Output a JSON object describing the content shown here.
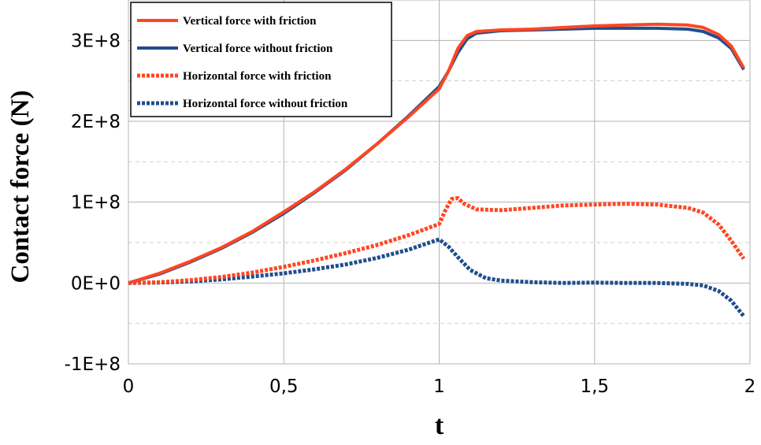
{
  "chart_data": {
    "type": "line",
    "title": "",
    "xlabel": "t",
    "ylabel": "Contact force (N)",
    "xlim": [
      0,
      2
    ],
    "ylim": [
      -100000000,
      350000000
    ],
    "x_ticks": [
      {
        "value": 0,
        "label": "0"
      },
      {
        "value": 0.5,
        "label": "0,5"
      },
      {
        "value": 1,
        "label": "1"
      },
      {
        "value": 1.5,
        "label": "1,5"
      },
      {
        "value": 2,
        "label": "2"
      }
    ],
    "y_ticks": [
      {
        "value": -100000000,
        "label": "-1E+8"
      },
      {
        "value": 0,
        "label": "0E+0"
      },
      {
        "value": 100000000,
        "label": "1E+8"
      },
      {
        "value": 200000000,
        "label": "2E+8"
      },
      {
        "value": 300000000,
        "label": "3E+8"
      }
    ],
    "grid": true,
    "legend_position": "top-left",
    "series": [
      {
        "name": "Vertical force with friction",
        "color": "#ff4621",
        "dash": "solid",
        "points": [
          [
            0,
            0
          ],
          [
            0.1,
            12000000
          ],
          [
            0.2,
            27000000
          ],
          [
            0.3,
            44000000
          ],
          [
            0.4,
            64000000
          ],
          [
            0.5,
            88000000
          ],
          [
            0.6,
            113000000
          ],
          [
            0.7,
            141000000
          ],
          [
            0.8,
            172000000
          ],
          [
            0.9,
            205000000
          ],
          [
            1.0,
            240000000
          ],
          [
            1.03,
            262000000
          ],
          [
            1.06,
            290000000
          ],
          [
            1.09,
            306000000
          ],
          [
            1.12,
            311000000
          ],
          [
            1.2,
            313000000
          ],
          [
            1.3,
            314000000
          ],
          [
            1.4,
            316000000
          ],
          [
            1.5,
            318000000
          ],
          [
            1.6,
            319000000
          ],
          [
            1.7,
            320000000
          ],
          [
            1.8,
            319000000
          ],
          [
            1.85,
            316000000
          ],
          [
            1.9,
            307000000
          ],
          [
            1.94,
            293000000
          ],
          [
            1.98,
            266000000
          ]
        ]
      },
      {
        "name": "Vertical force without friction",
        "color": "#1f4e8c",
        "dash": "solid",
        "points": [
          [
            0,
            0
          ],
          [
            0.1,
            11000000
          ],
          [
            0.2,
            26000000
          ],
          [
            0.3,
            43000000
          ],
          [
            0.4,
            63000000
          ],
          [
            0.5,
            86000000
          ],
          [
            0.6,
            112000000
          ],
          [
            0.7,
            140000000
          ],
          [
            0.8,
            172000000
          ],
          [
            0.9,
            206000000
          ],
          [
            1.0,
            243000000
          ],
          [
            1.03,
            262000000
          ],
          [
            1.06,
            285000000
          ],
          [
            1.09,
            302000000
          ],
          [
            1.12,
            309000000
          ],
          [
            1.2,
            312000000
          ],
          [
            1.3,
            313000000
          ],
          [
            1.4,
            314000000
          ],
          [
            1.5,
            315000000
          ],
          [
            1.6,
            315000000
          ],
          [
            1.7,
            315000000
          ],
          [
            1.8,
            314000000
          ],
          [
            1.85,
            311000000
          ],
          [
            1.9,
            303000000
          ],
          [
            1.94,
            290000000
          ],
          [
            1.98,
            264000000
          ]
        ]
      },
      {
        "name": "Horizontal force with friction",
        "color": "#ff4621",
        "dash": "dashed",
        "points": [
          [
            0,
            0
          ],
          [
            0.1,
            1000000
          ],
          [
            0.2,
            3500000
          ],
          [
            0.3,
            7500000
          ],
          [
            0.4,
            13000000
          ],
          [
            0.5,
            20000000
          ],
          [
            0.6,
            28000000
          ],
          [
            0.7,
            37000000
          ],
          [
            0.8,
            47000000
          ],
          [
            0.9,
            59000000
          ],
          [
            1.0,
            73000000
          ],
          [
            1.02,
            90000000
          ],
          [
            1.04,
            104000000
          ],
          [
            1.06,
            105000000
          ],
          [
            1.08,
            98000000
          ],
          [
            1.12,
            91000000
          ],
          [
            1.2,
            90000000
          ],
          [
            1.3,
            93000000
          ],
          [
            1.4,
            96000000
          ],
          [
            1.5,
            97000000
          ],
          [
            1.6,
            98000000
          ],
          [
            1.7,
            97000000
          ],
          [
            1.8,
            93000000
          ],
          [
            1.85,
            87000000
          ],
          [
            1.9,
            72000000
          ],
          [
            1.94,
            52000000
          ],
          [
            1.98,
            30000000
          ]
        ]
      },
      {
        "name": "Horizontal force without friction",
        "color": "#1f4e8c",
        "dash": "dashed",
        "points": [
          [
            0,
            0
          ],
          [
            0.1,
            500000
          ],
          [
            0.2,
            2000000
          ],
          [
            0.3,
            4500000
          ],
          [
            0.4,
            8000000
          ],
          [
            0.5,
            12000000
          ],
          [
            0.6,
            17000000
          ],
          [
            0.7,
            23000000
          ],
          [
            0.8,
            31000000
          ],
          [
            0.9,
            41000000
          ],
          [
            1.0,
            54000000
          ],
          [
            1.03,
            45000000
          ],
          [
            1.06,
            32000000
          ],
          [
            1.1,
            16000000
          ],
          [
            1.15,
            6000000
          ],
          [
            1.2,
            3000000
          ],
          [
            1.3,
            1000000
          ],
          [
            1.4,
            0
          ],
          [
            1.5,
            500000
          ],
          [
            1.6,
            0
          ],
          [
            1.7,
            0
          ],
          [
            1.8,
            -1000000
          ],
          [
            1.85,
            -3000000
          ],
          [
            1.9,
            -10000000
          ],
          [
            1.94,
            -22000000
          ],
          [
            1.98,
            -41000000
          ]
        ]
      }
    ]
  }
}
